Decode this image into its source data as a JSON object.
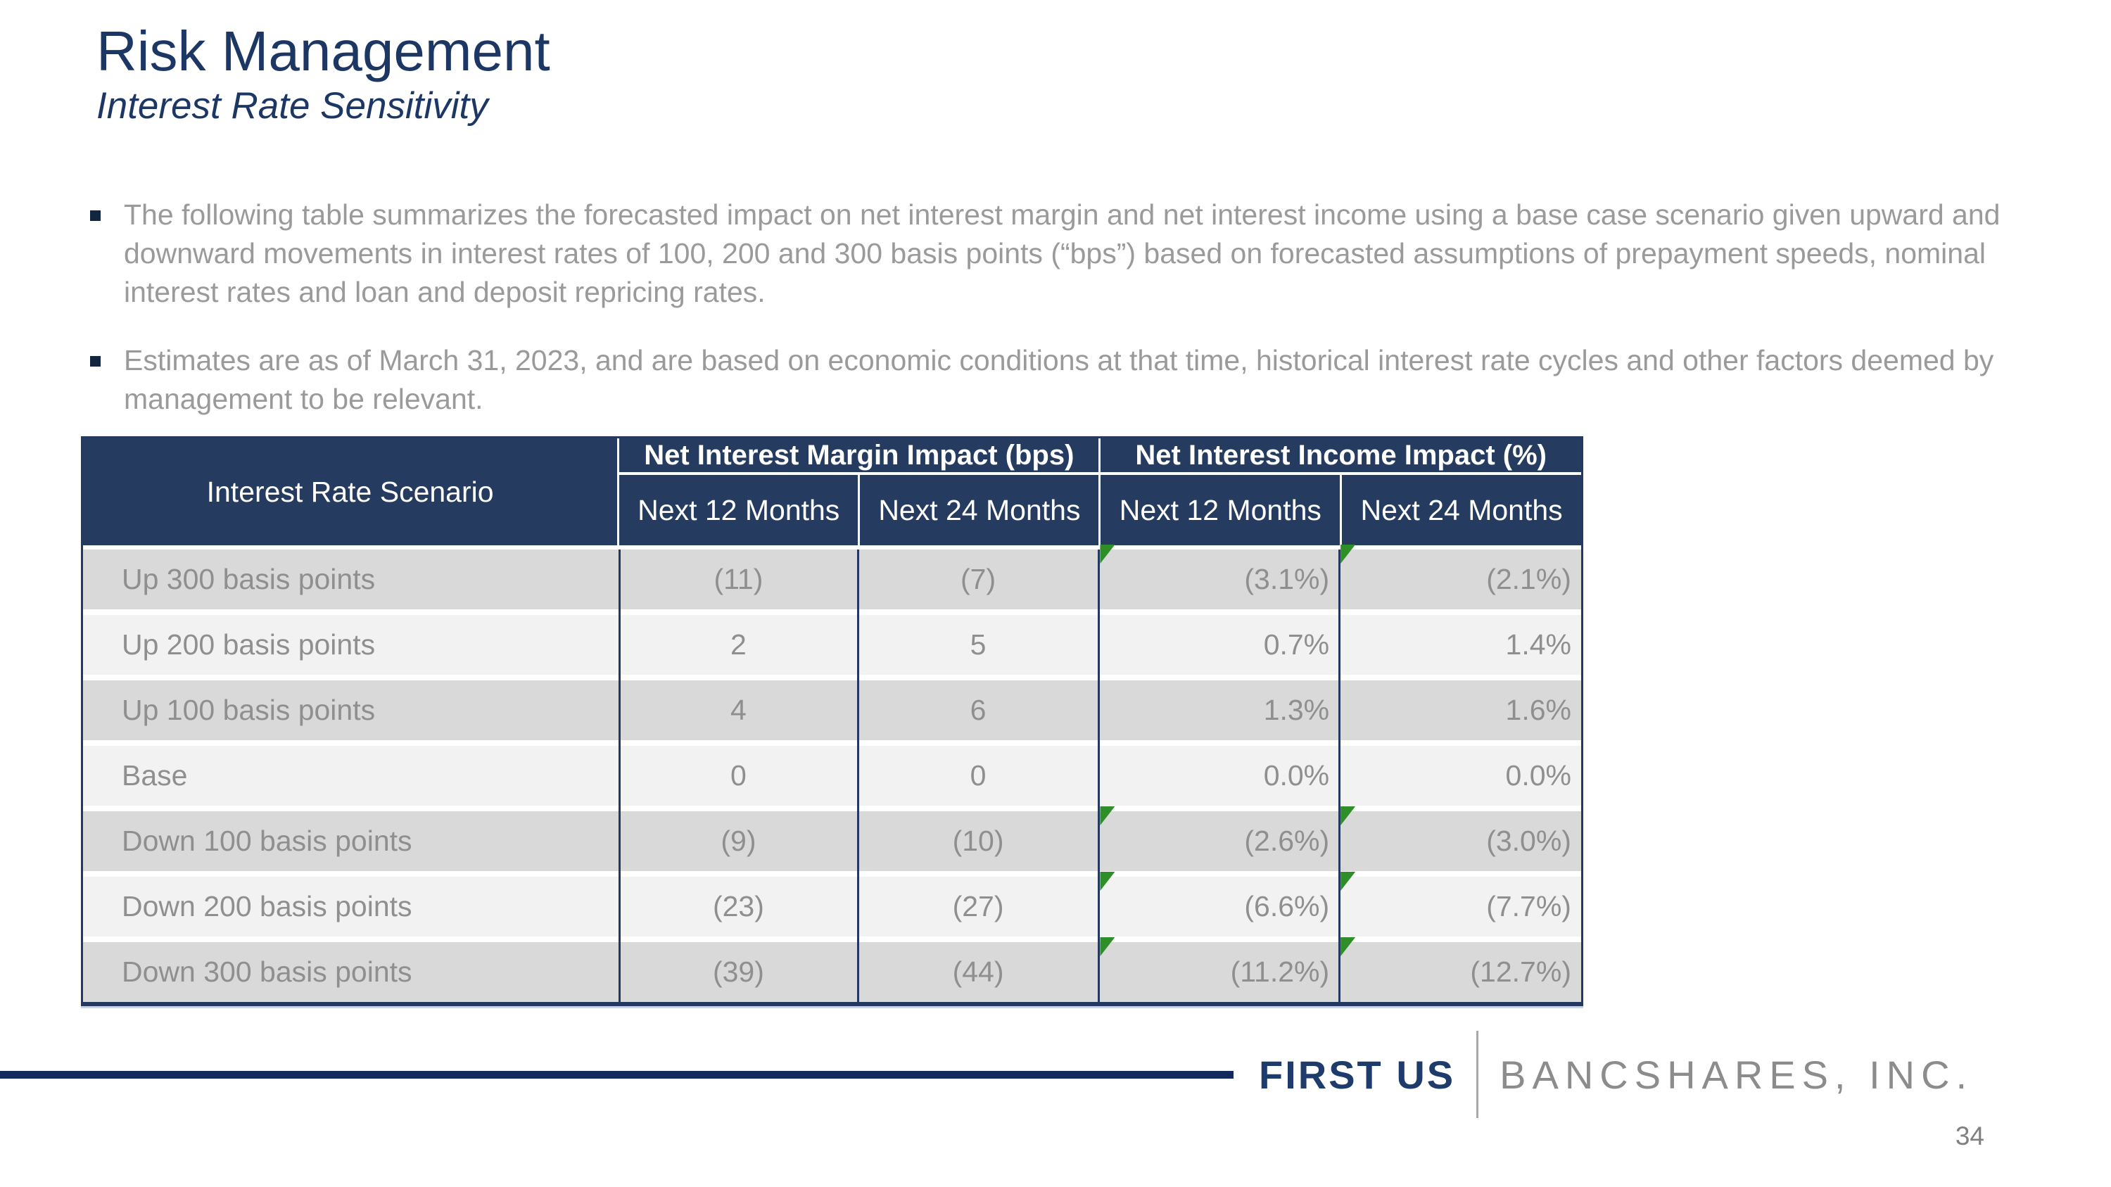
{
  "slide": {
    "title": "Risk Management",
    "subtitle": "Interest Rate Sensitivity",
    "bullets": [
      "The following table summarizes the forecasted impact on net interest margin and net interest income using a base case scenario given upward and downward movements in interest rates of 100, 200 and 300 basis points (“bps”) based on forecasted assumptions of prepayment speeds, nominal interest rates and loan and deposit repricing rates.",
      "Estimates are as of March 31, 2023, and are based on economic conditions at that time, historical interest rate cycles and other factors deemed by management to be relevant."
    ],
    "page_number": "34"
  },
  "table": {
    "row_header": "Interest Rate Scenario",
    "groups": [
      {
        "label": "Net Interest Margin Impact (bps)",
        "columns": [
          "Next 12 Months",
          "Next 24 Months"
        ]
      },
      {
        "label": "Net Interest Income Impact (%)",
        "columns": [
          "Next 12 Months",
          "Next 24 Months"
        ]
      }
    ],
    "rows": [
      {
        "scenario": "Up 300 basis points",
        "nim_12": "(11)",
        "nim_24": "(7)",
        "nii_12": "(3.1%)",
        "nii_24": "(2.1%)",
        "flag_12": true,
        "flag_24": true
      },
      {
        "scenario": "Up 200 basis points",
        "nim_12": "2",
        "nim_24": "5",
        "nii_12": "0.7%",
        "nii_24": "1.4%",
        "flag_12": false,
        "flag_24": false
      },
      {
        "scenario": "Up 100 basis points",
        "nim_12": "4",
        "nim_24": "6",
        "nii_12": "1.3%",
        "nii_24": "1.6%",
        "flag_12": false,
        "flag_24": false
      },
      {
        "scenario": "Base",
        "nim_12": "0",
        "nim_24": "0",
        "nii_12": "0.0%",
        "nii_24": "0.0%",
        "flag_12": false,
        "flag_24": false
      },
      {
        "scenario": "Down 100 basis points",
        "nim_12": "(9)",
        "nim_24": "(10)",
        "nii_12": "(2.6%)",
        "nii_24": "(3.0%)",
        "flag_12": true,
        "flag_24": true
      },
      {
        "scenario": "Down 200 basis points",
        "nim_12": "(23)",
        "nim_24": "(27)",
        "nii_12": "(6.6%)",
        "nii_24": "(7.7%)",
        "flag_12": true,
        "flag_24": true
      },
      {
        "scenario": "Down 300 basis points",
        "nim_12": "(39)",
        "nim_24": "(44)",
        "nii_12": "(11.2%)",
        "nii_24": "(12.7%)",
        "flag_12": true,
        "flag_24": true
      }
    ]
  },
  "footer": {
    "brand_primary": "FIRST US",
    "brand_secondary": "BANCSHARES, INC."
  },
  "colors": {
    "navy_title": "#1d3765",
    "navy_header": "#253b60",
    "navy_border": "#24395f",
    "navy_rule": "#13295b",
    "row_dark": "#d9d9d9",
    "row_light": "#f2f2f2",
    "text_gray": "#8f8f8f",
    "bullet_gray": "#9a9a9a",
    "flag_green": "#2e8f28"
  }
}
